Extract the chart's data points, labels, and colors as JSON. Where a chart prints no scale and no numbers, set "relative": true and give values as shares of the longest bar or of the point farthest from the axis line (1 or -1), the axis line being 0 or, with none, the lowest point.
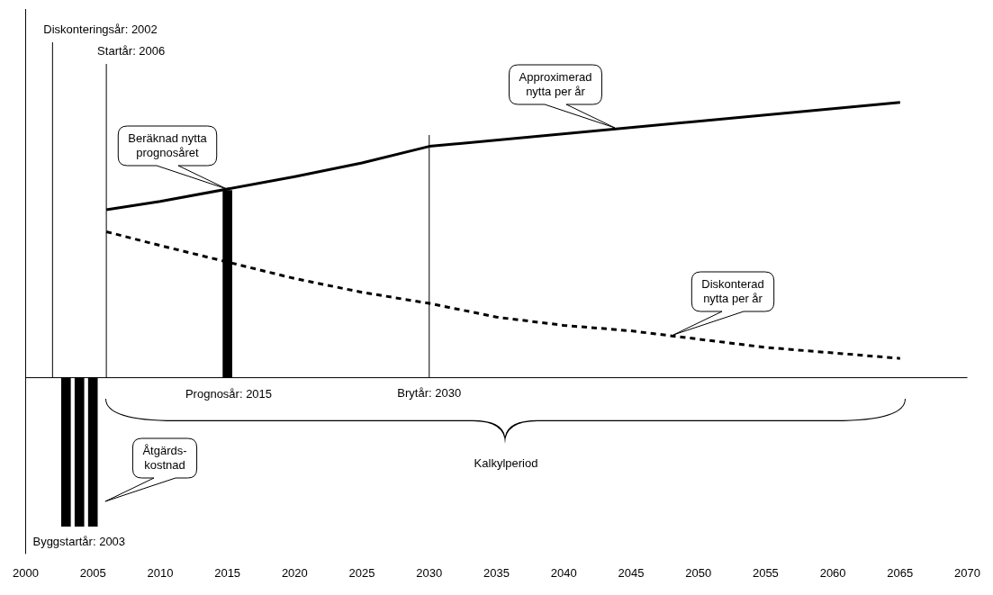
{
  "chart_data": {
    "type": "line",
    "relative": true,
    "grid": false,
    "legend": false,
    "marker": "none",
    "xlim": [
      2000,
      2070
    ],
    "xticks": [
      2000,
      2005,
      2010,
      2015,
      2020,
      2025,
      2030,
      2035,
      2040,
      2045,
      2050,
      2055,
      2060,
      2065,
      2070
    ],
    "series": [
      {
        "type": "bar",
        "color": "#000000",
        "x": [
          2003,
          2004,
          2005,
          2015
        ],
        "values": [
          -0.54,
          -0.54,
          -0.54,
          0.68
        ]
      },
      {
        "color": "#000000",
        "line_style": "solid",
        "x": [
          2006,
          2010,
          2020,
          2025,
          2030,
          2065
        ],
        "values": [
          0.61,
          0.64,
          0.73,
          0.78,
          0.84,
          1
        ]
      },
      {
        "color": "#000000",
        "line_style": "dashed",
        "x": [
          2006,
          2010,
          2020,
          2025,
          2030,
          2035,
          2040,
          2045,
          2050,
          2055,
          2060,
          2065
        ],
        "values": [
          0.53,
          0.48,
          0.36,
          0.31,
          0.27,
          0.22,
          0.19,
          0.17,
          0.14,
          0.11,
          0.09,
          0.07
        ]
      }
    ],
    "ref_lines": [
      {
        "axis": "x",
        "value": 2002,
        "label": "Diskonteringsår: 2002"
      },
      {
        "axis": "x",
        "value": 2006,
        "label": "Startår: 2006"
      },
      {
        "axis": "x",
        "value": 2030
      }
    ],
    "annotations": [
      {
        "text": "Brytår: 2030",
        "x": 2030,
        "y": 0
      },
      {
        "text": "Byggstartår: 2003",
        "x": 2003,
        "y": -0.54
      },
      "Beräknad nytta prognosåret",
      "Approximerad nytta per år",
      "Diskonterad nytta per år",
      "Prognosår: 2015",
      "Åtgärds-kostnad",
      "Kalkylperiod"
    ]
  }
}
